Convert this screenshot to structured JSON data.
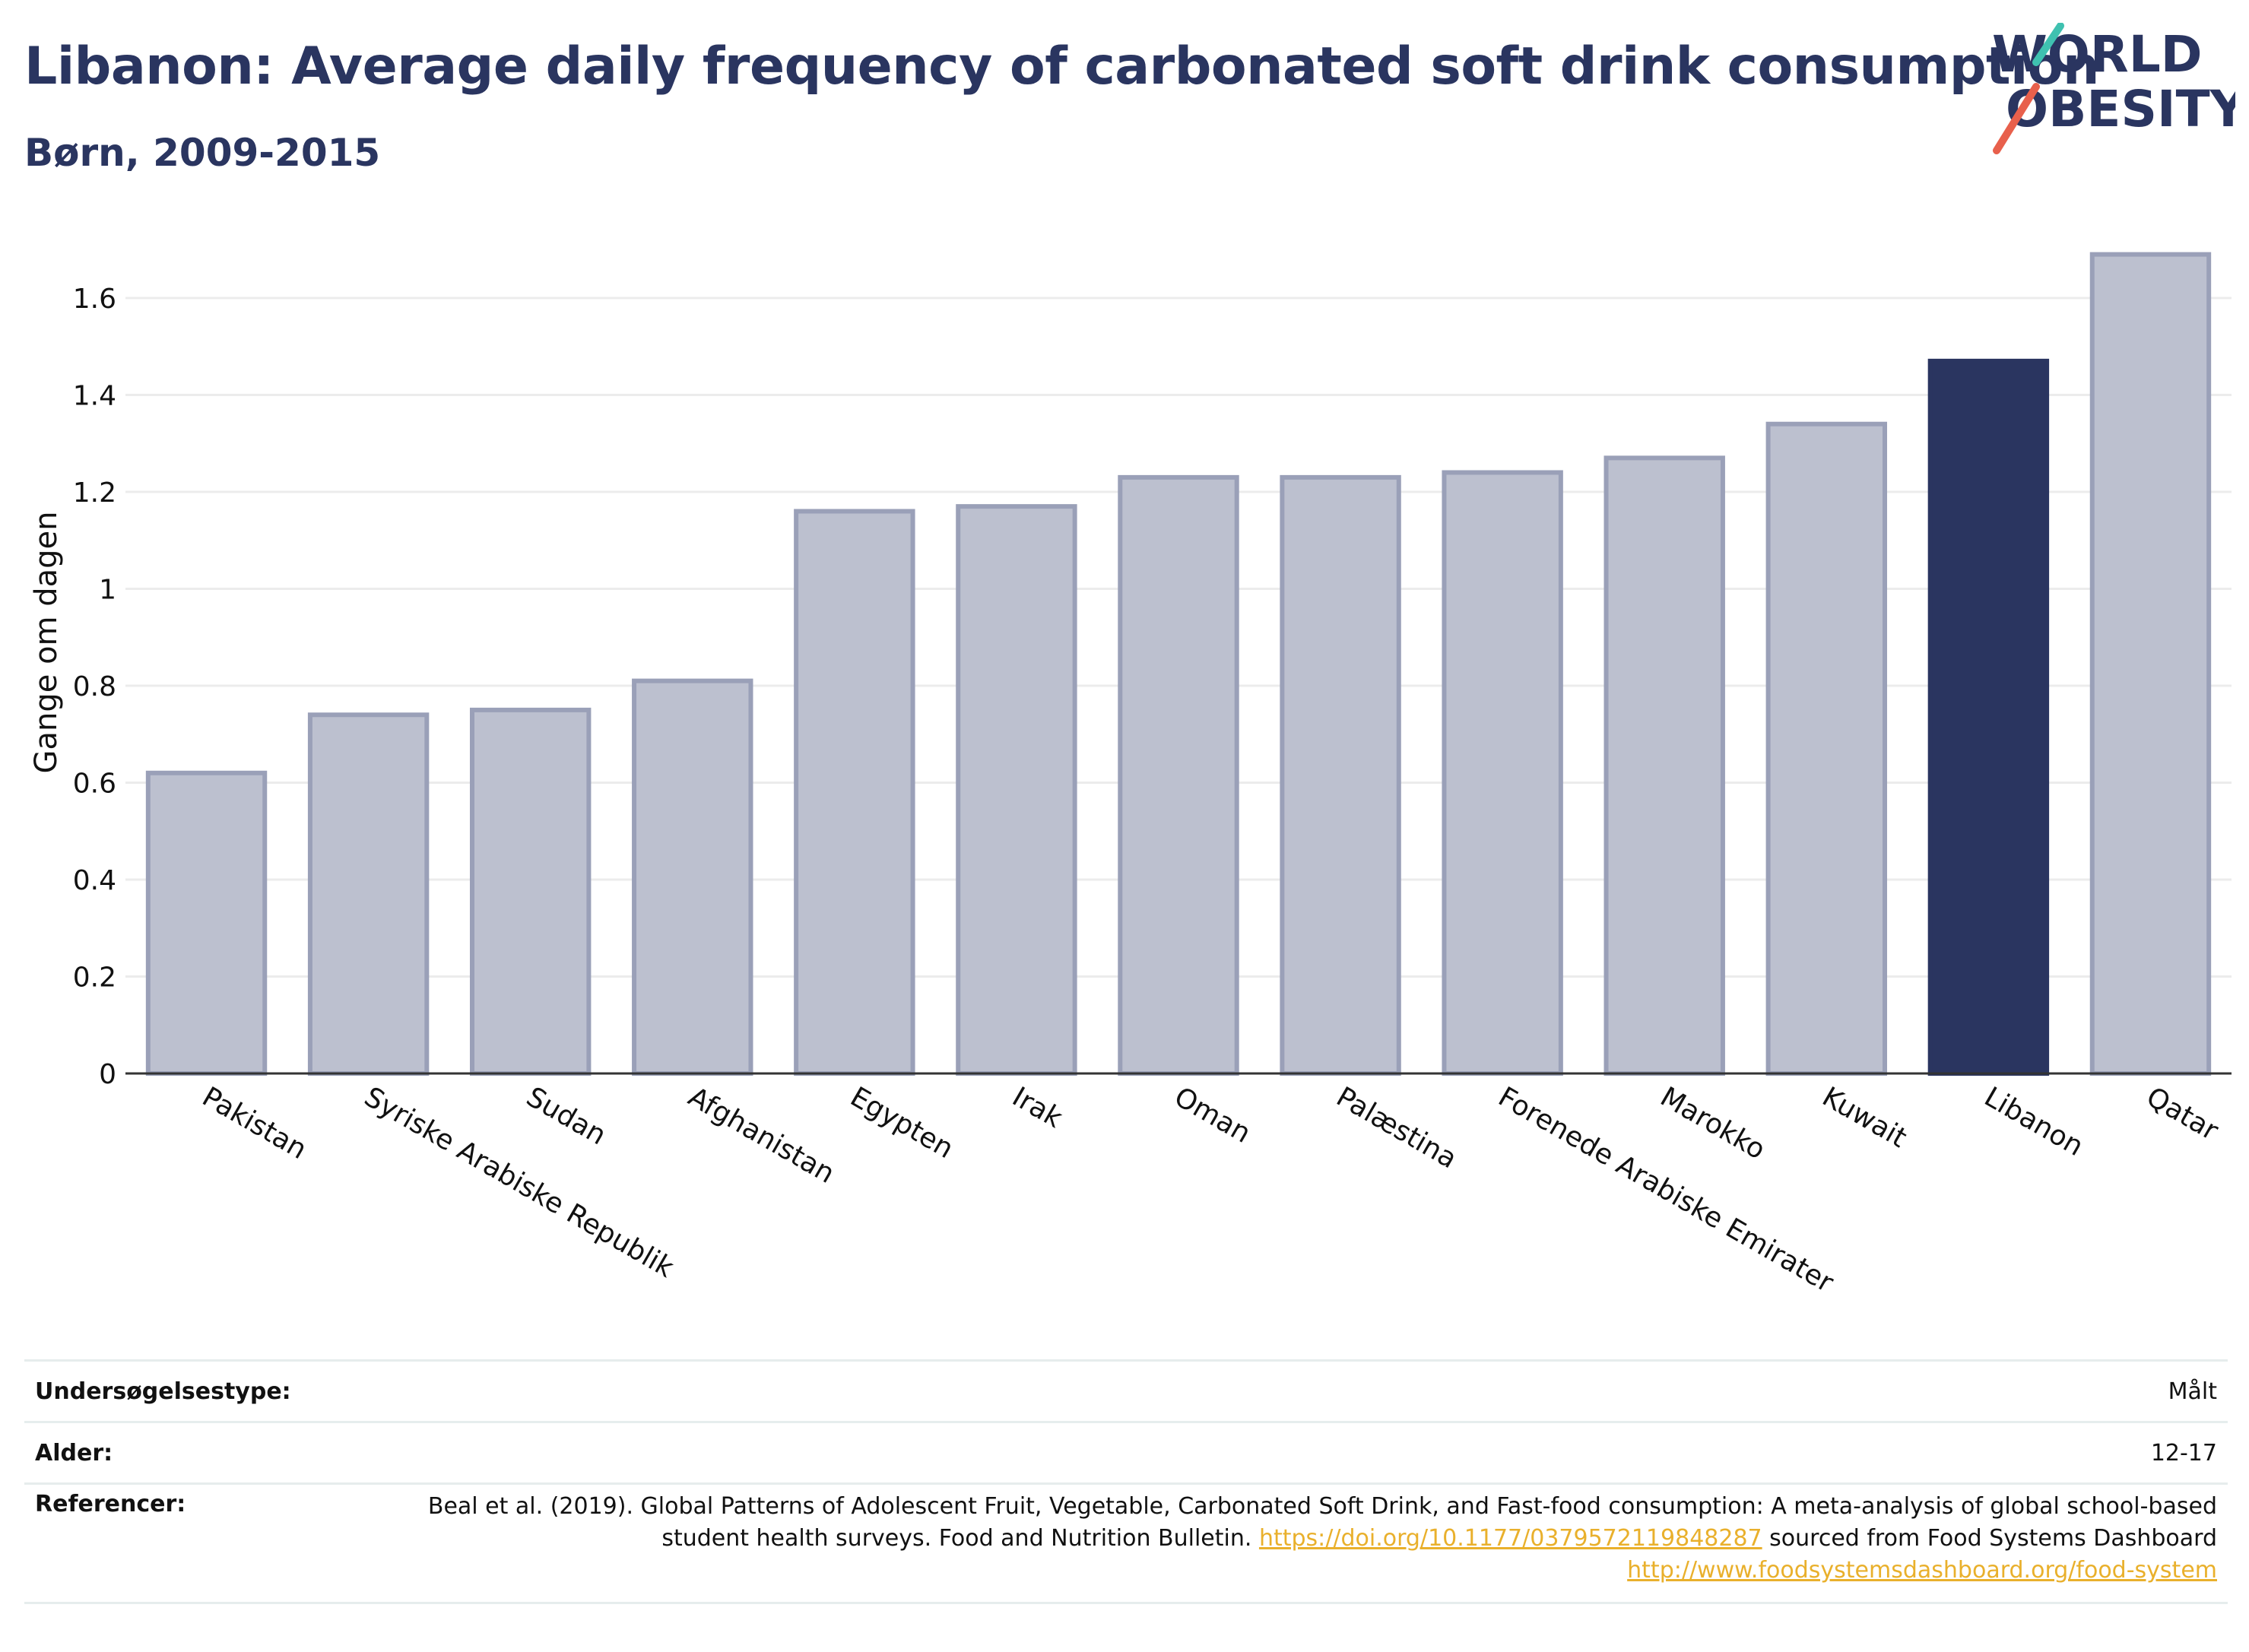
{
  "header": {
    "title": "Libanon: Average daily frequency of carbonated soft drink consumption",
    "subtitle": "Børn, 2009-2015",
    "logo_text": "WORLD OBESITY",
    "logo_line1": "WORLD",
    "logo_line2": "OBESITY"
  },
  "colors": {
    "title": "#2a3560",
    "highlight_bar": "#2a3560",
    "bar_fill": "#bcc0cf",
    "bar_stroke": "#9aa0b8",
    "grid": "#ececec",
    "link": "#e9b02c",
    "logo_teal": "#3fc1b0",
    "logo_coral": "#e8604c"
  },
  "chart_data": {
    "type": "bar",
    "title": "Libanon: Average daily frequency of carbonated soft drink consumption",
    "subtitle": "Børn, 2009-2015",
    "xlabel": "",
    "ylabel": "Gange om dagen",
    "categories": [
      "Pakistan",
      "Syriske Arabiske Republik",
      "Sudan",
      "Afghanistan",
      "Egypten",
      "Irak",
      "Oman",
      "Palæstina",
      "Forenede Arabiske Emirater",
      "Marokko",
      "Kuwait",
      "Libanon",
      "Qatar"
    ],
    "values": [
      0.62,
      0.74,
      0.75,
      0.81,
      1.16,
      1.17,
      1.23,
      1.23,
      1.24,
      1.27,
      1.34,
      1.47,
      1.69
    ],
    "highlight": "Libanon",
    "ylim": [
      0,
      1.76
    ],
    "yticks": [
      0,
      0.2,
      0.4,
      0.6,
      0.8,
      1,
      1.2,
      1.4,
      1.6
    ],
    "ytick_labels": [
      "0",
      "0.2",
      "0.4",
      "0.6",
      "0.8",
      "1",
      "1.2",
      "1.4",
      "1.6"
    ],
    "grid": true,
    "legend": "none"
  },
  "info_table": {
    "rows": [
      {
        "key": "Undersøgelsestype:",
        "value": "Målt"
      },
      {
        "key": "Alder:",
        "value": "12-17"
      }
    ],
    "references": {
      "key": "Referencer:",
      "text_before": "Beal et al. (2019). Global Patterns of Adolescent Fruit, Vegetable, Carbonated Soft Drink, and Fast-food consumption: A meta-analysis of global school-based student health surveys. Food and Nutrition Bulletin.",
      "link1": "https://doi.org/10.1177/0379572119848287",
      "text_middle": "sourced from Food Systems Dashboard",
      "link2": "http://www.foodsystemsdashboard.org/food-system"
    }
  }
}
